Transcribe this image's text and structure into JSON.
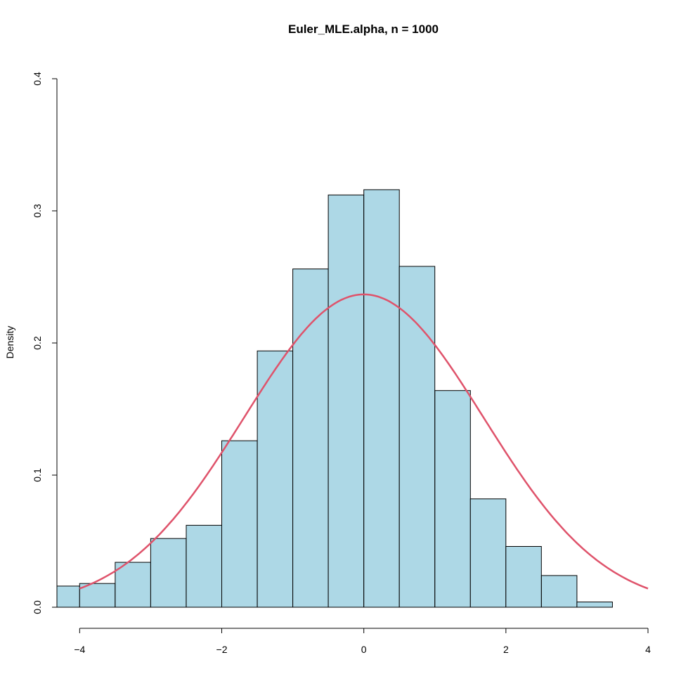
{
  "chart_data": {
    "type": "histogram",
    "title": "Euler_MLE.alpha, n = 1000",
    "xlabel": "",
    "ylabel": "Density",
    "xlim": [
      -4.32,
      4.0
    ],
    "ylim": [
      0,
      0.4
    ],
    "x_ticks": [
      -4,
      -2,
      0,
      2,
      4
    ],
    "x_tick_labels": [
      "−4",
      "−2",
      "0",
      "2",
      "4"
    ],
    "y_ticks": [
      0.0,
      0.1,
      0.2,
      0.3,
      0.4
    ],
    "y_tick_labels": [
      "0.0",
      "0.1",
      "0.2",
      "0.3",
      "0.4"
    ],
    "bins": [
      {
        "x0": -4.5,
        "x1": -4.0,
        "density": 0.016
      },
      {
        "x0": -4.0,
        "x1": -3.5,
        "density": 0.018
      },
      {
        "x0": -3.5,
        "x1": -3.0,
        "density": 0.034
      },
      {
        "x0": -3.0,
        "x1": -2.5,
        "density": 0.052
      },
      {
        "x0": -2.5,
        "x1": -2.0,
        "density": 0.062
      },
      {
        "x0": -2.0,
        "x1": -1.5,
        "density": 0.126
      },
      {
        "x0": -1.5,
        "x1": -1.0,
        "density": 0.194
      },
      {
        "x0": -1.0,
        "x1": -0.5,
        "density": 0.256
      },
      {
        "x0": -0.5,
        "x1": 0.0,
        "density": 0.312
      },
      {
        "x0": 0.0,
        "x1": 0.5,
        "density": 0.316
      },
      {
        "x0": 0.5,
        "x1": 1.0,
        "density": 0.258
      },
      {
        "x0": 1.0,
        "x1": 1.5,
        "density": 0.164
      },
      {
        "x0": 1.5,
        "x1": 2.0,
        "density": 0.082
      },
      {
        "x0": 2.0,
        "x1": 2.5,
        "density": 0.046
      },
      {
        "x0": 2.5,
        "x1": 3.0,
        "density": 0.024
      },
      {
        "x0": 3.0,
        "x1": 3.5,
        "density": 0.004
      }
    ],
    "curve": {
      "kind": "normal",
      "mean": 0,
      "sd": 1.685,
      "x_range": [
        -4.0,
        4.0
      ],
      "color": "#df536b"
    },
    "bar_fill": "#add8e6",
    "bar_stroke": "#000000",
    "grid": false,
    "legend": "none"
  }
}
